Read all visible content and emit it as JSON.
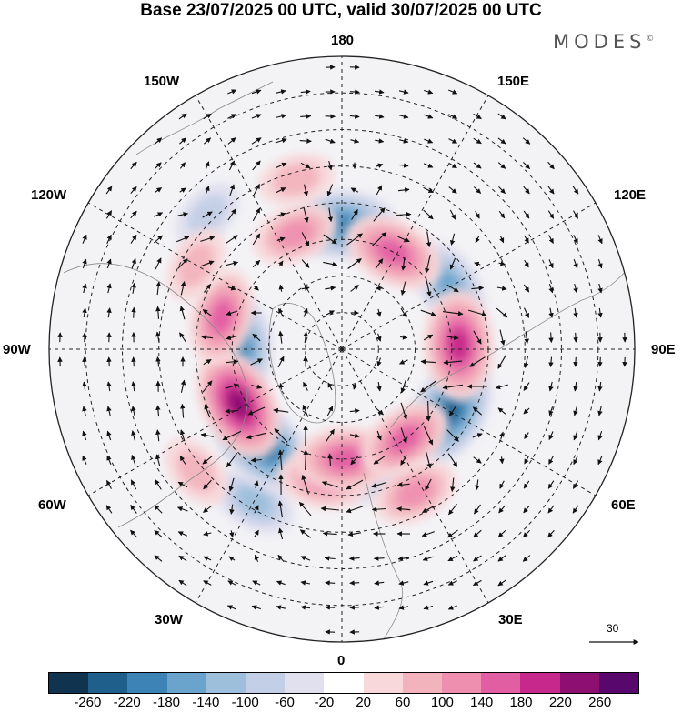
{
  "title": "Base 23/07/2025 00 UTC, valid 30/07/2025 00 UTC",
  "brand": "MODES",
  "brand_mark": "©",
  "longitude_labels": {
    "top": "180",
    "top_left": "150W",
    "top_right": "150E",
    "upper_left": "120W",
    "upper_right": "120E",
    "left": "90W",
    "right": "90E",
    "lower_left": "60W",
    "lower_right": "60E",
    "bottom_left": "30W",
    "bottom_right": "30E",
    "bottom": "0"
  },
  "reference_vector_value": "30",
  "colorbar": {
    "colors": [
      "#10344f",
      "#1f5f8b",
      "#3d83b5",
      "#6aa4cc",
      "#9dbfdc",
      "#c3cfe6",
      "#e0e0ef",
      "#ffffff",
      "#f8d8da",
      "#f3b3bd",
      "#ee8fb0",
      "#e25ea3",
      "#c6288b",
      "#8e0f72",
      "#58086c"
    ],
    "tick_labels": [
      "-260",
      "-220",
      "-180",
      "-140",
      "-100",
      "-60",
      "-20",
      "20",
      "60",
      "100",
      "140",
      "180",
      "220",
      "260"
    ]
  },
  "anomalies": [
    {
      "name": "neg-bering",
      "lon": -150,
      "colat": 48,
      "value": -100
    },
    {
      "name": "neg-canada-west",
      "lon": -140,
      "colat": 34,
      "value": -220
    },
    {
      "name": "neg-chukotka",
      "lon": 165,
      "colat": 36,
      "value": -80
    },
    {
      "name": "neg-siberia-east",
      "lon": 120,
      "colat": 34,
      "value": -220
    },
    {
      "name": "neg-hudson",
      "lon": -90,
      "colat": 28,
      "value": -180
    },
    {
      "name": "neg-kazakh",
      "lon": 60,
      "colat": 34,
      "value": -140
    },
    {
      "name": "neg-scandinavia",
      "lon": 0,
      "colat": 34,
      "value": -200
    },
    {
      "name": "neg-atlantic",
      "lon": -45,
      "colat": 52,
      "value": -60
    },
    {
      "name": "pos-alaska",
      "lon": -172,
      "colat": 36,
      "value": 120
    },
    {
      "name": "pos-siberia-ne",
      "lon": 178,
      "colat": 30,
      "value": 160
    },
    {
      "name": "pos-east-siberia",
      "lon": 145,
      "colat": 30,
      "value": 140
    },
    {
      "name": "pos-yakutia",
      "lon": 153,
      "colat": 44,
      "value": 100
    },
    {
      "name": "pos-canada",
      "lon": -118,
      "colat": 32,
      "value": 220
    },
    {
      "name": "pos-pacific",
      "lon": -130,
      "colat": 52,
      "value": 60
    },
    {
      "name": "pos-labrador",
      "lon": -75,
      "colat": 34,
      "value": 140
    },
    {
      "name": "pos-siberia-central",
      "lon": 88,
      "colat": 32,
      "value": 200
    },
    {
      "name": "pos-urals",
      "lon": 28,
      "colat": 30,
      "value": 160
    },
    {
      "name": "pos-north-atlantic",
      "lon": -22,
      "colat": 34,
      "value": 100
    },
    {
      "name": "pos-iberia",
      "lon": -15,
      "colat": 48,
      "value": 60
    },
    {
      "name": "pos-new-england",
      "lon": -60,
      "colat": 46,
      "value": 60
    }
  ]
}
